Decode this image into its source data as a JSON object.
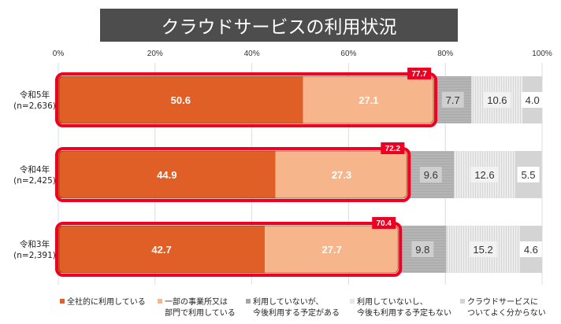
{
  "chart_data": {
    "type": "bar",
    "orientation": "horizontal",
    "stacked": "100%",
    "title": "クラウドサービスの利用状況",
    "xlabel": "",
    "ylabel": "",
    "xlim": [
      0,
      100
    ],
    "x_ticks": [
      "0%",
      "20%",
      "40%",
      "60%",
      "80%",
      "100%"
    ],
    "grid": true,
    "legend_position": "bottom",
    "categories": [
      {
        "line1": "令和5年",
        "line2": "(n=2,636)"
      },
      {
        "line1": "令和4年",
        "line2": "(n=2,425)"
      },
      {
        "line1": "令和3年",
        "line2": "(n=2,391)"
      }
    ],
    "series": [
      {
        "name": "全社的に利用している",
        "color": "#e05f26",
        "values": [
          50.6,
          44.9,
          42.7
        ]
      },
      {
        "name": "一部の事業所又は部門で利用している",
        "name_lines": [
          "一部の事業所又は",
          "部門で利用している"
        ],
        "color": "#f7b58c",
        "values": [
          27.1,
          27.3,
          27.7
        ]
      },
      {
        "name": "利用していないが、今後利用する予定がある",
        "name_lines": [
          "利用していないが、",
          "今後利用する予定がある"
        ],
        "color": "#a6a6a6",
        "values": [
          7.7,
          9.6,
          9.8
        ]
      },
      {
        "name": "利用していないし、今後も利用する予定もない",
        "name_lines": [
          "利用していないし、",
          "今後も利用する予定もない"
        ],
        "color": "#e6e6e6",
        "values": [
          10.6,
          12.6,
          15.2
        ]
      },
      {
        "name": "クラウドサービスについてよく分からない",
        "name_lines": [
          "クラウドサービスに",
          "ついてよく分からない"
        ],
        "color": "#d4d4d4",
        "values": [
          4.0,
          5.5,
          4.6
        ]
      }
    ],
    "annotations": {
      "usage_total_labels": [
        "77.7",
        "72.2",
        "70.4"
      ],
      "highlight_color": "#ee0022"
    }
  }
}
